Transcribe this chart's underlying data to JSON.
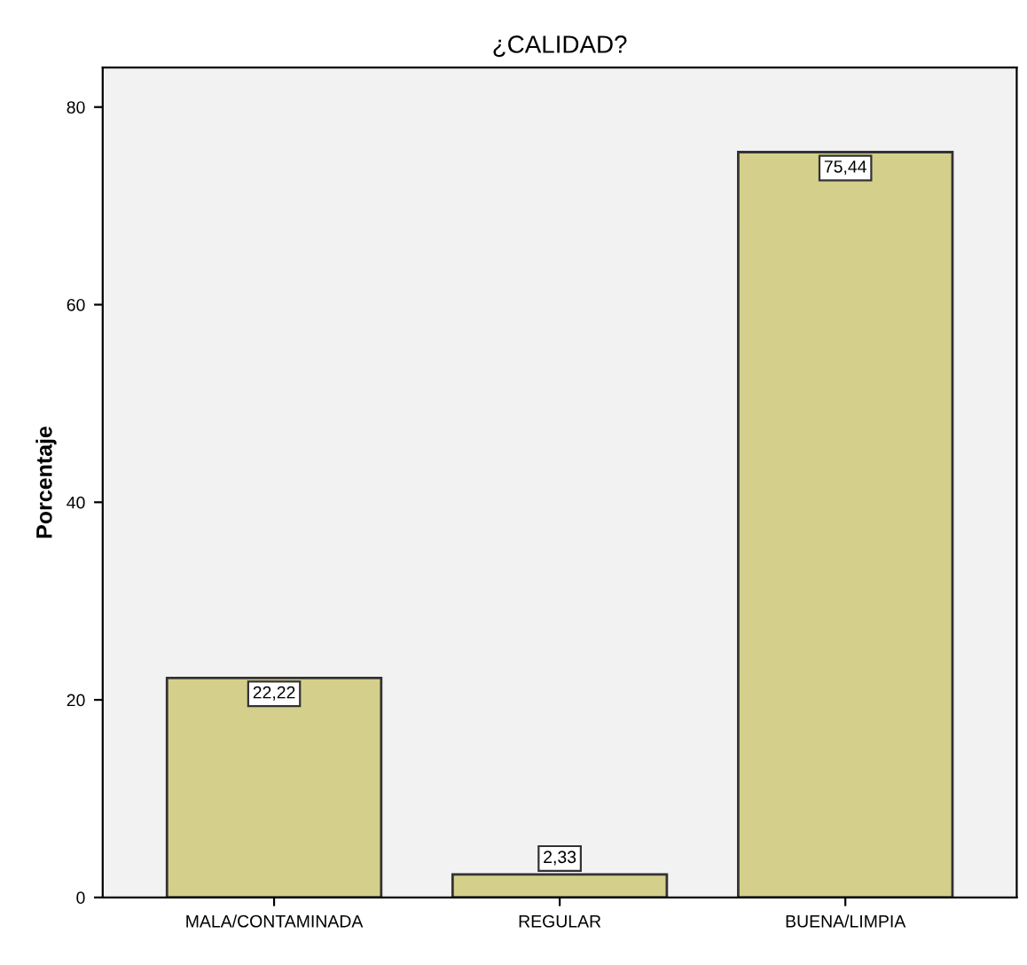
{
  "chart_data": {
    "type": "bar",
    "title": "¿CALIDAD?",
    "ylabel": "Porcentaje",
    "categories": [
      "MALA/CONTAMINADA",
      "REGULAR",
      "BUENA/LIMPIA"
    ],
    "values": [
      22.22,
      2.33,
      75.44
    ],
    "value_labels": [
      "22,22",
      "2,33",
      "75,44"
    ],
    "color": "#d4d08c",
    "ylim": [
      0,
      84
    ],
    "yticks": [
      0,
      20,
      40,
      60,
      80
    ],
    "grid": false
  }
}
